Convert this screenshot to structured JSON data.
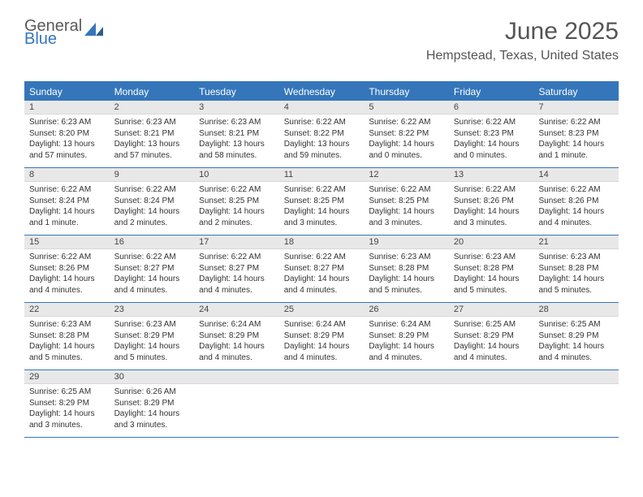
{
  "logo": {
    "line1": "General",
    "line2": "Blue",
    "swoosh_color": "#3576ba",
    "text_gray": "#5a5a5a"
  },
  "title": "June 2025",
  "location": "Hempstead, Texas, United States",
  "colors": {
    "header_bg": "#3576ba",
    "daynum_bg": "#e8e8e8",
    "border": "#3576ba",
    "text": "#333333"
  },
  "weekdays": [
    "Sunday",
    "Monday",
    "Tuesday",
    "Wednesday",
    "Thursday",
    "Friday",
    "Saturday"
  ],
  "days": [
    {
      "n": "1",
      "sunrise": "6:23 AM",
      "sunset": "8:20 PM",
      "daylight": "13 hours and 57 minutes."
    },
    {
      "n": "2",
      "sunrise": "6:23 AM",
      "sunset": "8:21 PM",
      "daylight": "13 hours and 57 minutes."
    },
    {
      "n": "3",
      "sunrise": "6:23 AM",
      "sunset": "8:21 PM",
      "daylight": "13 hours and 58 minutes."
    },
    {
      "n": "4",
      "sunrise": "6:22 AM",
      "sunset": "8:22 PM",
      "daylight": "13 hours and 59 minutes."
    },
    {
      "n": "5",
      "sunrise": "6:22 AM",
      "sunset": "8:22 PM",
      "daylight": "14 hours and 0 minutes."
    },
    {
      "n": "6",
      "sunrise": "6:22 AM",
      "sunset": "8:23 PM",
      "daylight": "14 hours and 0 minutes."
    },
    {
      "n": "7",
      "sunrise": "6:22 AM",
      "sunset": "8:23 PM",
      "daylight": "14 hours and 1 minute."
    },
    {
      "n": "8",
      "sunrise": "6:22 AM",
      "sunset": "8:24 PM",
      "daylight": "14 hours and 1 minute."
    },
    {
      "n": "9",
      "sunrise": "6:22 AM",
      "sunset": "8:24 PM",
      "daylight": "14 hours and 2 minutes."
    },
    {
      "n": "10",
      "sunrise": "6:22 AM",
      "sunset": "8:25 PM",
      "daylight": "14 hours and 2 minutes."
    },
    {
      "n": "11",
      "sunrise": "6:22 AM",
      "sunset": "8:25 PM",
      "daylight": "14 hours and 3 minutes."
    },
    {
      "n": "12",
      "sunrise": "6:22 AM",
      "sunset": "8:25 PM",
      "daylight": "14 hours and 3 minutes."
    },
    {
      "n": "13",
      "sunrise": "6:22 AM",
      "sunset": "8:26 PM",
      "daylight": "14 hours and 3 minutes."
    },
    {
      "n": "14",
      "sunrise": "6:22 AM",
      "sunset": "8:26 PM",
      "daylight": "14 hours and 4 minutes."
    },
    {
      "n": "15",
      "sunrise": "6:22 AM",
      "sunset": "8:26 PM",
      "daylight": "14 hours and 4 minutes."
    },
    {
      "n": "16",
      "sunrise": "6:22 AM",
      "sunset": "8:27 PM",
      "daylight": "14 hours and 4 minutes."
    },
    {
      "n": "17",
      "sunrise": "6:22 AM",
      "sunset": "8:27 PM",
      "daylight": "14 hours and 4 minutes."
    },
    {
      "n": "18",
      "sunrise": "6:22 AM",
      "sunset": "8:27 PM",
      "daylight": "14 hours and 4 minutes."
    },
    {
      "n": "19",
      "sunrise": "6:23 AM",
      "sunset": "8:28 PM",
      "daylight": "14 hours and 5 minutes."
    },
    {
      "n": "20",
      "sunrise": "6:23 AM",
      "sunset": "8:28 PM",
      "daylight": "14 hours and 5 minutes."
    },
    {
      "n": "21",
      "sunrise": "6:23 AM",
      "sunset": "8:28 PM",
      "daylight": "14 hours and 5 minutes."
    },
    {
      "n": "22",
      "sunrise": "6:23 AM",
      "sunset": "8:28 PM",
      "daylight": "14 hours and 5 minutes."
    },
    {
      "n": "23",
      "sunrise": "6:23 AM",
      "sunset": "8:29 PM",
      "daylight": "14 hours and 5 minutes."
    },
    {
      "n": "24",
      "sunrise": "6:24 AM",
      "sunset": "8:29 PM",
      "daylight": "14 hours and 4 minutes."
    },
    {
      "n": "25",
      "sunrise": "6:24 AM",
      "sunset": "8:29 PM",
      "daylight": "14 hours and 4 minutes."
    },
    {
      "n": "26",
      "sunrise": "6:24 AM",
      "sunset": "8:29 PM",
      "daylight": "14 hours and 4 minutes."
    },
    {
      "n": "27",
      "sunrise": "6:25 AM",
      "sunset": "8:29 PM",
      "daylight": "14 hours and 4 minutes."
    },
    {
      "n": "28",
      "sunrise": "6:25 AM",
      "sunset": "8:29 PM",
      "daylight": "14 hours and 4 minutes."
    },
    {
      "n": "29",
      "sunrise": "6:25 AM",
      "sunset": "8:29 PM",
      "daylight": "14 hours and 3 minutes."
    },
    {
      "n": "30",
      "sunrise": "6:26 AM",
      "sunset": "8:29 PM",
      "daylight": "14 hours and 3 minutes."
    }
  ],
  "labels": {
    "sunrise": "Sunrise: ",
    "sunset": "Sunset: ",
    "daylight": "Daylight: "
  }
}
